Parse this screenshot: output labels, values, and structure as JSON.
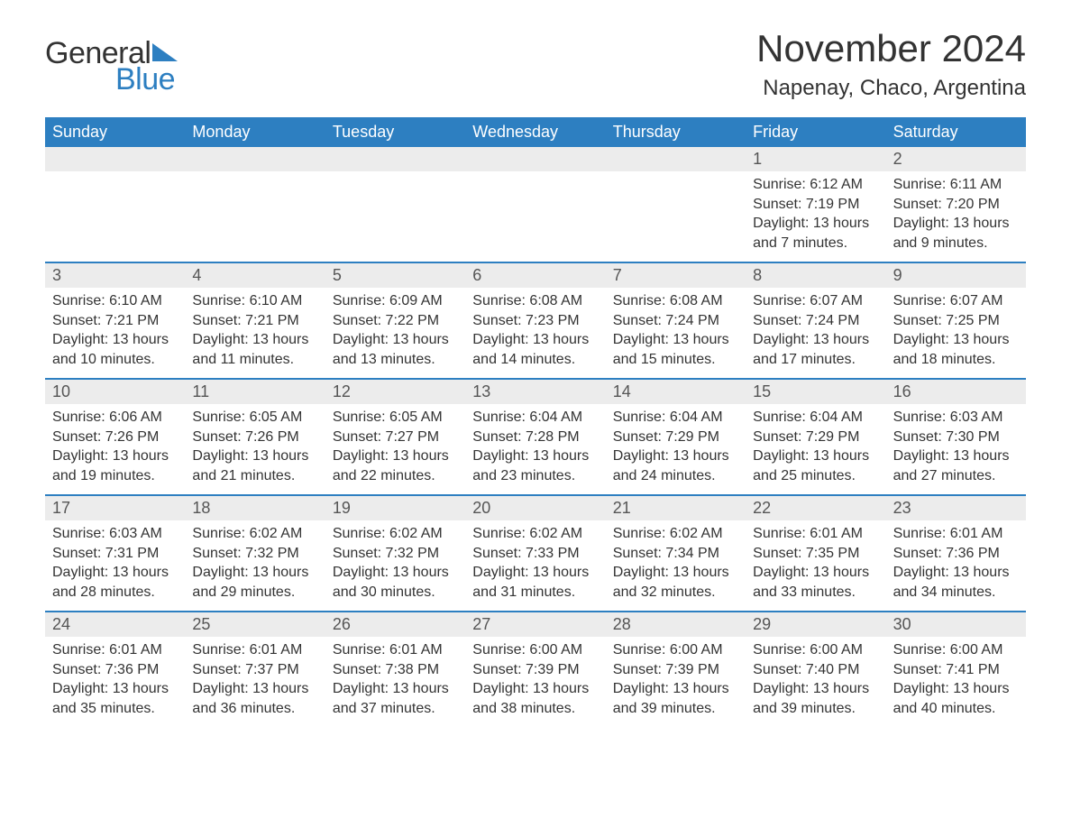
{
  "brand": {
    "part1": "General",
    "part2": "Blue"
  },
  "title": "November 2024",
  "location": "Napenay, Chaco, Argentina",
  "colors": {
    "accent": "#2d7fc1",
    "header_text": "#ffffff",
    "daynum_bg": "#ececec",
    "text": "#333333",
    "background": "#ffffff"
  },
  "typography": {
    "title_fontsize": 42,
    "location_fontsize": 24,
    "weekday_fontsize": 18,
    "daynum_fontsize": 18,
    "body_fontsize": 16
  },
  "layout": {
    "columns": 7,
    "rows": 5
  },
  "weekdays": [
    "Sunday",
    "Monday",
    "Tuesday",
    "Wednesday",
    "Thursday",
    "Friday",
    "Saturday"
  ],
  "weeks": [
    {
      "days": [
        {
          "num": "",
          "empty": true
        },
        {
          "num": "",
          "empty": true
        },
        {
          "num": "",
          "empty": true
        },
        {
          "num": "",
          "empty": true
        },
        {
          "num": "",
          "empty": true
        },
        {
          "num": "1",
          "sunrise": "Sunrise: 6:12 AM",
          "sunset": "Sunset: 7:19 PM",
          "daylight1": "Daylight: 13 hours",
          "daylight2": "and 7 minutes."
        },
        {
          "num": "2",
          "sunrise": "Sunrise: 6:11 AM",
          "sunset": "Sunset: 7:20 PM",
          "daylight1": "Daylight: 13 hours",
          "daylight2": "and 9 minutes."
        }
      ]
    },
    {
      "days": [
        {
          "num": "3",
          "sunrise": "Sunrise: 6:10 AM",
          "sunset": "Sunset: 7:21 PM",
          "daylight1": "Daylight: 13 hours",
          "daylight2": "and 10 minutes."
        },
        {
          "num": "4",
          "sunrise": "Sunrise: 6:10 AM",
          "sunset": "Sunset: 7:21 PM",
          "daylight1": "Daylight: 13 hours",
          "daylight2": "and 11 minutes."
        },
        {
          "num": "5",
          "sunrise": "Sunrise: 6:09 AM",
          "sunset": "Sunset: 7:22 PM",
          "daylight1": "Daylight: 13 hours",
          "daylight2": "and 13 minutes."
        },
        {
          "num": "6",
          "sunrise": "Sunrise: 6:08 AM",
          "sunset": "Sunset: 7:23 PM",
          "daylight1": "Daylight: 13 hours",
          "daylight2": "and 14 minutes."
        },
        {
          "num": "7",
          "sunrise": "Sunrise: 6:08 AM",
          "sunset": "Sunset: 7:24 PM",
          "daylight1": "Daylight: 13 hours",
          "daylight2": "and 15 minutes."
        },
        {
          "num": "8",
          "sunrise": "Sunrise: 6:07 AM",
          "sunset": "Sunset: 7:24 PM",
          "daylight1": "Daylight: 13 hours",
          "daylight2": "and 17 minutes."
        },
        {
          "num": "9",
          "sunrise": "Sunrise: 6:07 AM",
          "sunset": "Sunset: 7:25 PM",
          "daylight1": "Daylight: 13 hours",
          "daylight2": "and 18 minutes."
        }
      ]
    },
    {
      "days": [
        {
          "num": "10",
          "sunrise": "Sunrise: 6:06 AM",
          "sunset": "Sunset: 7:26 PM",
          "daylight1": "Daylight: 13 hours",
          "daylight2": "and 19 minutes."
        },
        {
          "num": "11",
          "sunrise": "Sunrise: 6:05 AM",
          "sunset": "Sunset: 7:26 PM",
          "daylight1": "Daylight: 13 hours",
          "daylight2": "and 21 minutes."
        },
        {
          "num": "12",
          "sunrise": "Sunrise: 6:05 AM",
          "sunset": "Sunset: 7:27 PM",
          "daylight1": "Daylight: 13 hours",
          "daylight2": "and 22 minutes."
        },
        {
          "num": "13",
          "sunrise": "Sunrise: 6:04 AM",
          "sunset": "Sunset: 7:28 PM",
          "daylight1": "Daylight: 13 hours",
          "daylight2": "and 23 minutes."
        },
        {
          "num": "14",
          "sunrise": "Sunrise: 6:04 AM",
          "sunset": "Sunset: 7:29 PM",
          "daylight1": "Daylight: 13 hours",
          "daylight2": "and 24 minutes."
        },
        {
          "num": "15",
          "sunrise": "Sunrise: 6:04 AM",
          "sunset": "Sunset: 7:29 PM",
          "daylight1": "Daylight: 13 hours",
          "daylight2": "and 25 minutes."
        },
        {
          "num": "16",
          "sunrise": "Sunrise: 6:03 AM",
          "sunset": "Sunset: 7:30 PM",
          "daylight1": "Daylight: 13 hours",
          "daylight2": "and 27 minutes."
        }
      ]
    },
    {
      "days": [
        {
          "num": "17",
          "sunrise": "Sunrise: 6:03 AM",
          "sunset": "Sunset: 7:31 PM",
          "daylight1": "Daylight: 13 hours",
          "daylight2": "and 28 minutes."
        },
        {
          "num": "18",
          "sunrise": "Sunrise: 6:02 AM",
          "sunset": "Sunset: 7:32 PM",
          "daylight1": "Daylight: 13 hours",
          "daylight2": "and 29 minutes."
        },
        {
          "num": "19",
          "sunrise": "Sunrise: 6:02 AM",
          "sunset": "Sunset: 7:32 PM",
          "daylight1": "Daylight: 13 hours",
          "daylight2": "and 30 minutes."
        },
        {
          "num": "20",
          "sunrise": "Sunrise: 6:02 AM",
          "sunset": "Sunset: 7:33 PM",
          "daylight1": "Daylight: 13 hours",
          "daylight2": "and 31 minutes."
        },
        {
          "num": "21",
          "sunrise": "Sunrise: 6:02 AM",
          "sunset": "Sunset: 7:34 PM",
          "daylight1": "Daylight: 13 hours",
          "daylight2": "and 32 minutes."
        },
        {
          "num": "22",
          "sunrise": "Sunrise: 6:01 AM",
          "sunset": "Sunset: 7:35 PM",
          "daylight1": "Daylight: 13 hours",
          "daylight2": "and 33 minutes."
        },
        {
          "num": "23",
          "sunrise": "Sunrise: 6:01 AM",
          "sunset": "Sunset: 7:36 PM",
          "daylight1": "Daylight: 13 hours",
          "daylight2": "and 34 minutes."
        }
      ]
    },
    {
      "days": [
        {
          "num": "24",
          "sunrise": "Sunrise: 6:01 AM",
          "sunset": "Sunset: 7:36 PM",
          "daylight1": "Daylight: 13 hours",
          "daylight2": "and 35 minutes."
        },
        {
          "num": "25",
          "sunrise": "Sunrise: 6:01 AM",
          "sunset": "Sunset: 7:37 PM",
          "daylight1": "Daylight: 13 hours",
          "daylight2": "and 36 minutes."
        },
        {
          "num": "26",
          "sunrise": "Sunrise: 6:01 AM",
          "sunset": "Sunset: 7:38 PM",
          "daylight1": "Daylight: 13 hours",
          "daylight2": "and 37 minutes."
        },
        {
          "num": "27",
          "sunrise": "Sunrise: 6:00 AM",
          "sunset": "Sunset: 7:39 PM",
          "daylight1": "Daylight: 13 hours",
          "daylight2": "and 38 minutes."
        },
        {
          "num": "28",
          "sunrise": "Sunrise: 6:00 AM",
          "sunset": "Sunset: 7:39 PM",
          "daylight1": "Daylight: 13 hours",
          "daylight2": "and 39 minutes."
        },
        {
          "num": "29",
          "sunrise": "Sunrise: 6:00 AM",
          "sunset": "Sunset: 7:40 PM",
          "daylight1": "Daylight: 13 hours",
          "daylight2": "and 39 minutes."
        },
        {
          "num": "30",
          "sunrise": "Sunrise: 6:00 AM",
          "sunset": "Sunset: 7:41 PM",
          "daylight1": "Daylight: 13 hours",
          "daylight2": "and 40 minutes."
        }
      ]
    }
  ]
}
